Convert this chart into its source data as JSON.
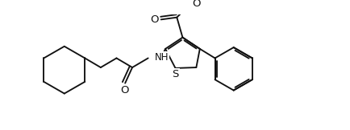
{
  "bg_color": "#ffffff",
  "line_color": "#111111",
  "line_width": 1.35,
  "dpi": 100,
  "figsize": [
    4.34,
    1.62
  ],
  "xlim": [
    0,
    434
  ],
  "ylim": [
    0,
    162
  ]
}
